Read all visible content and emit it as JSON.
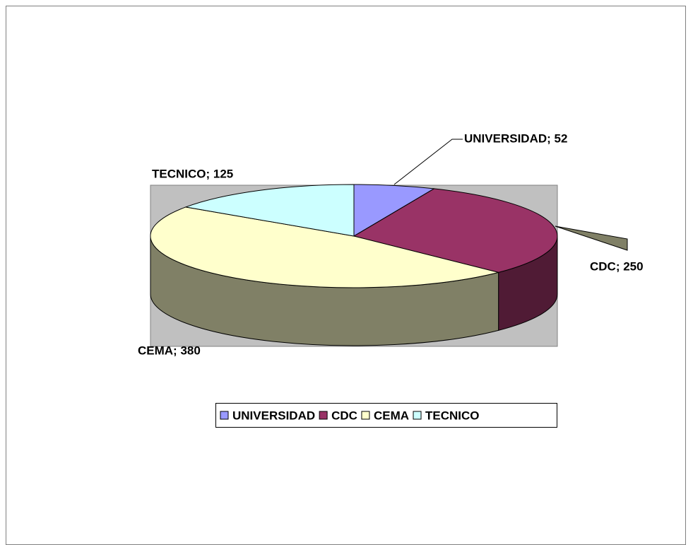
{
  "chart_data": {
    "type": "pie",
    "categories": [
      "UNIVERSIDAD",
      "CDC",
      "CEMA",
      "TECNICO"
    ],
    "values": [
      52,
      250,
      380,
      125
    ],
    "value_labels": [
      "UNIVERSIDAD; 52",
      "CDC; 250",
      "CEMA; 380",
      "TECNICO; 125"
    ],
    "colors": [
      "#9999ff",
      "#993366",
      "#ffffcc",
      "#ccffff"
    ],
    "legend": "bottom"
  }
}
